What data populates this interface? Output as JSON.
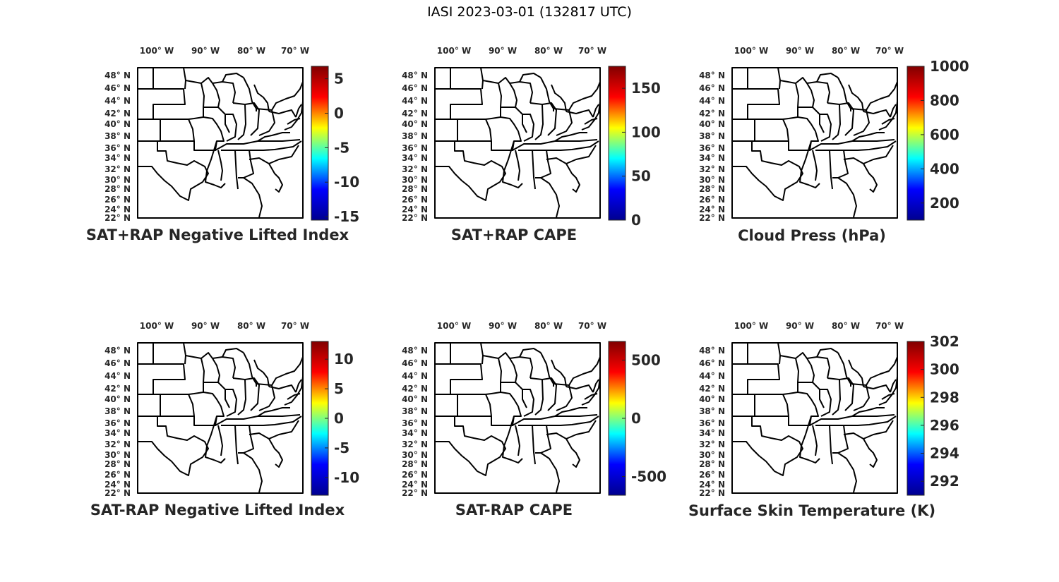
{
  "figure": {
    "title": "IASI 2023-03-01 (132817 UTC)",
    "lon_ticks": [
      "100",
      "90",
      "80",
      "70"
    ],
    "lat_ticks": [
      "48",
      "46",
      "44",
      "42",
      "40",
      "38",
      "36",
      "34",
      "32",
      "30",
      "28",
      "26",
      "24",
      "22"
    ],
    "lon_suffix": "W",
    "lat_suffix": "N",
    "degree_symbol": "°"
  },
  "panels": [
    {
      "title": "SAT+RAP Negative Lifted Index",
      "colorbar": {
        "ticks": [
          "5",
          "0",
          "-5",
          "-10",
          "-15"
        ],
        "range": [
          -15.5,
          6.8
        ]
      }
    },
    {
      "title": "SAT+RAP CAPE",
      "colorbar": {
        "ticks": [
          "150",
          "100",
          "50",
          "0"
        ],
        "range": [
          0,
          175
        ]
      }
    },
    {
      "title": "Cloud Press (hPa)",
      "colorbar": {
        "ticks": [
          "1000",
          "800",
          "600",
          "400",
          "200"
        ],
        "range": [
          100,
          1000
        ]
      }
    },
    {
      "title": "SAT-RAP Negative Lifted Index",
      "colorbar": {
        "ticks": [
          "10",
          "5",
          "0",
          "-5",
          "-10"
        ],
        "range": [
          -13,
          13
        ]
      }
    },
    {
      "title": "SAT-RAP CAPE",
      "colorbar": {
        "ticks": [
          "500",
          "0",
          "-500"
        ],
        "range": [
          -660,
          660
        ]
      }
    },
    {
      "title": "Surface Skin Temperature (K)",
      "colorbar": {
        "ticks": [
          "302",
          "300",
          "298",
          "296",
          "294",
          "292"
        ],
        "range": [
          291,
          302
        ]
      }
    }
  ],
  "colormap": {
    "name": "jet",
    "stops": [
      "#00008f",
      "#0000ff",
      "#00ffff",
      "#ffff00",
      "#ff0000",
      "#800000"
    ]
  }
}
